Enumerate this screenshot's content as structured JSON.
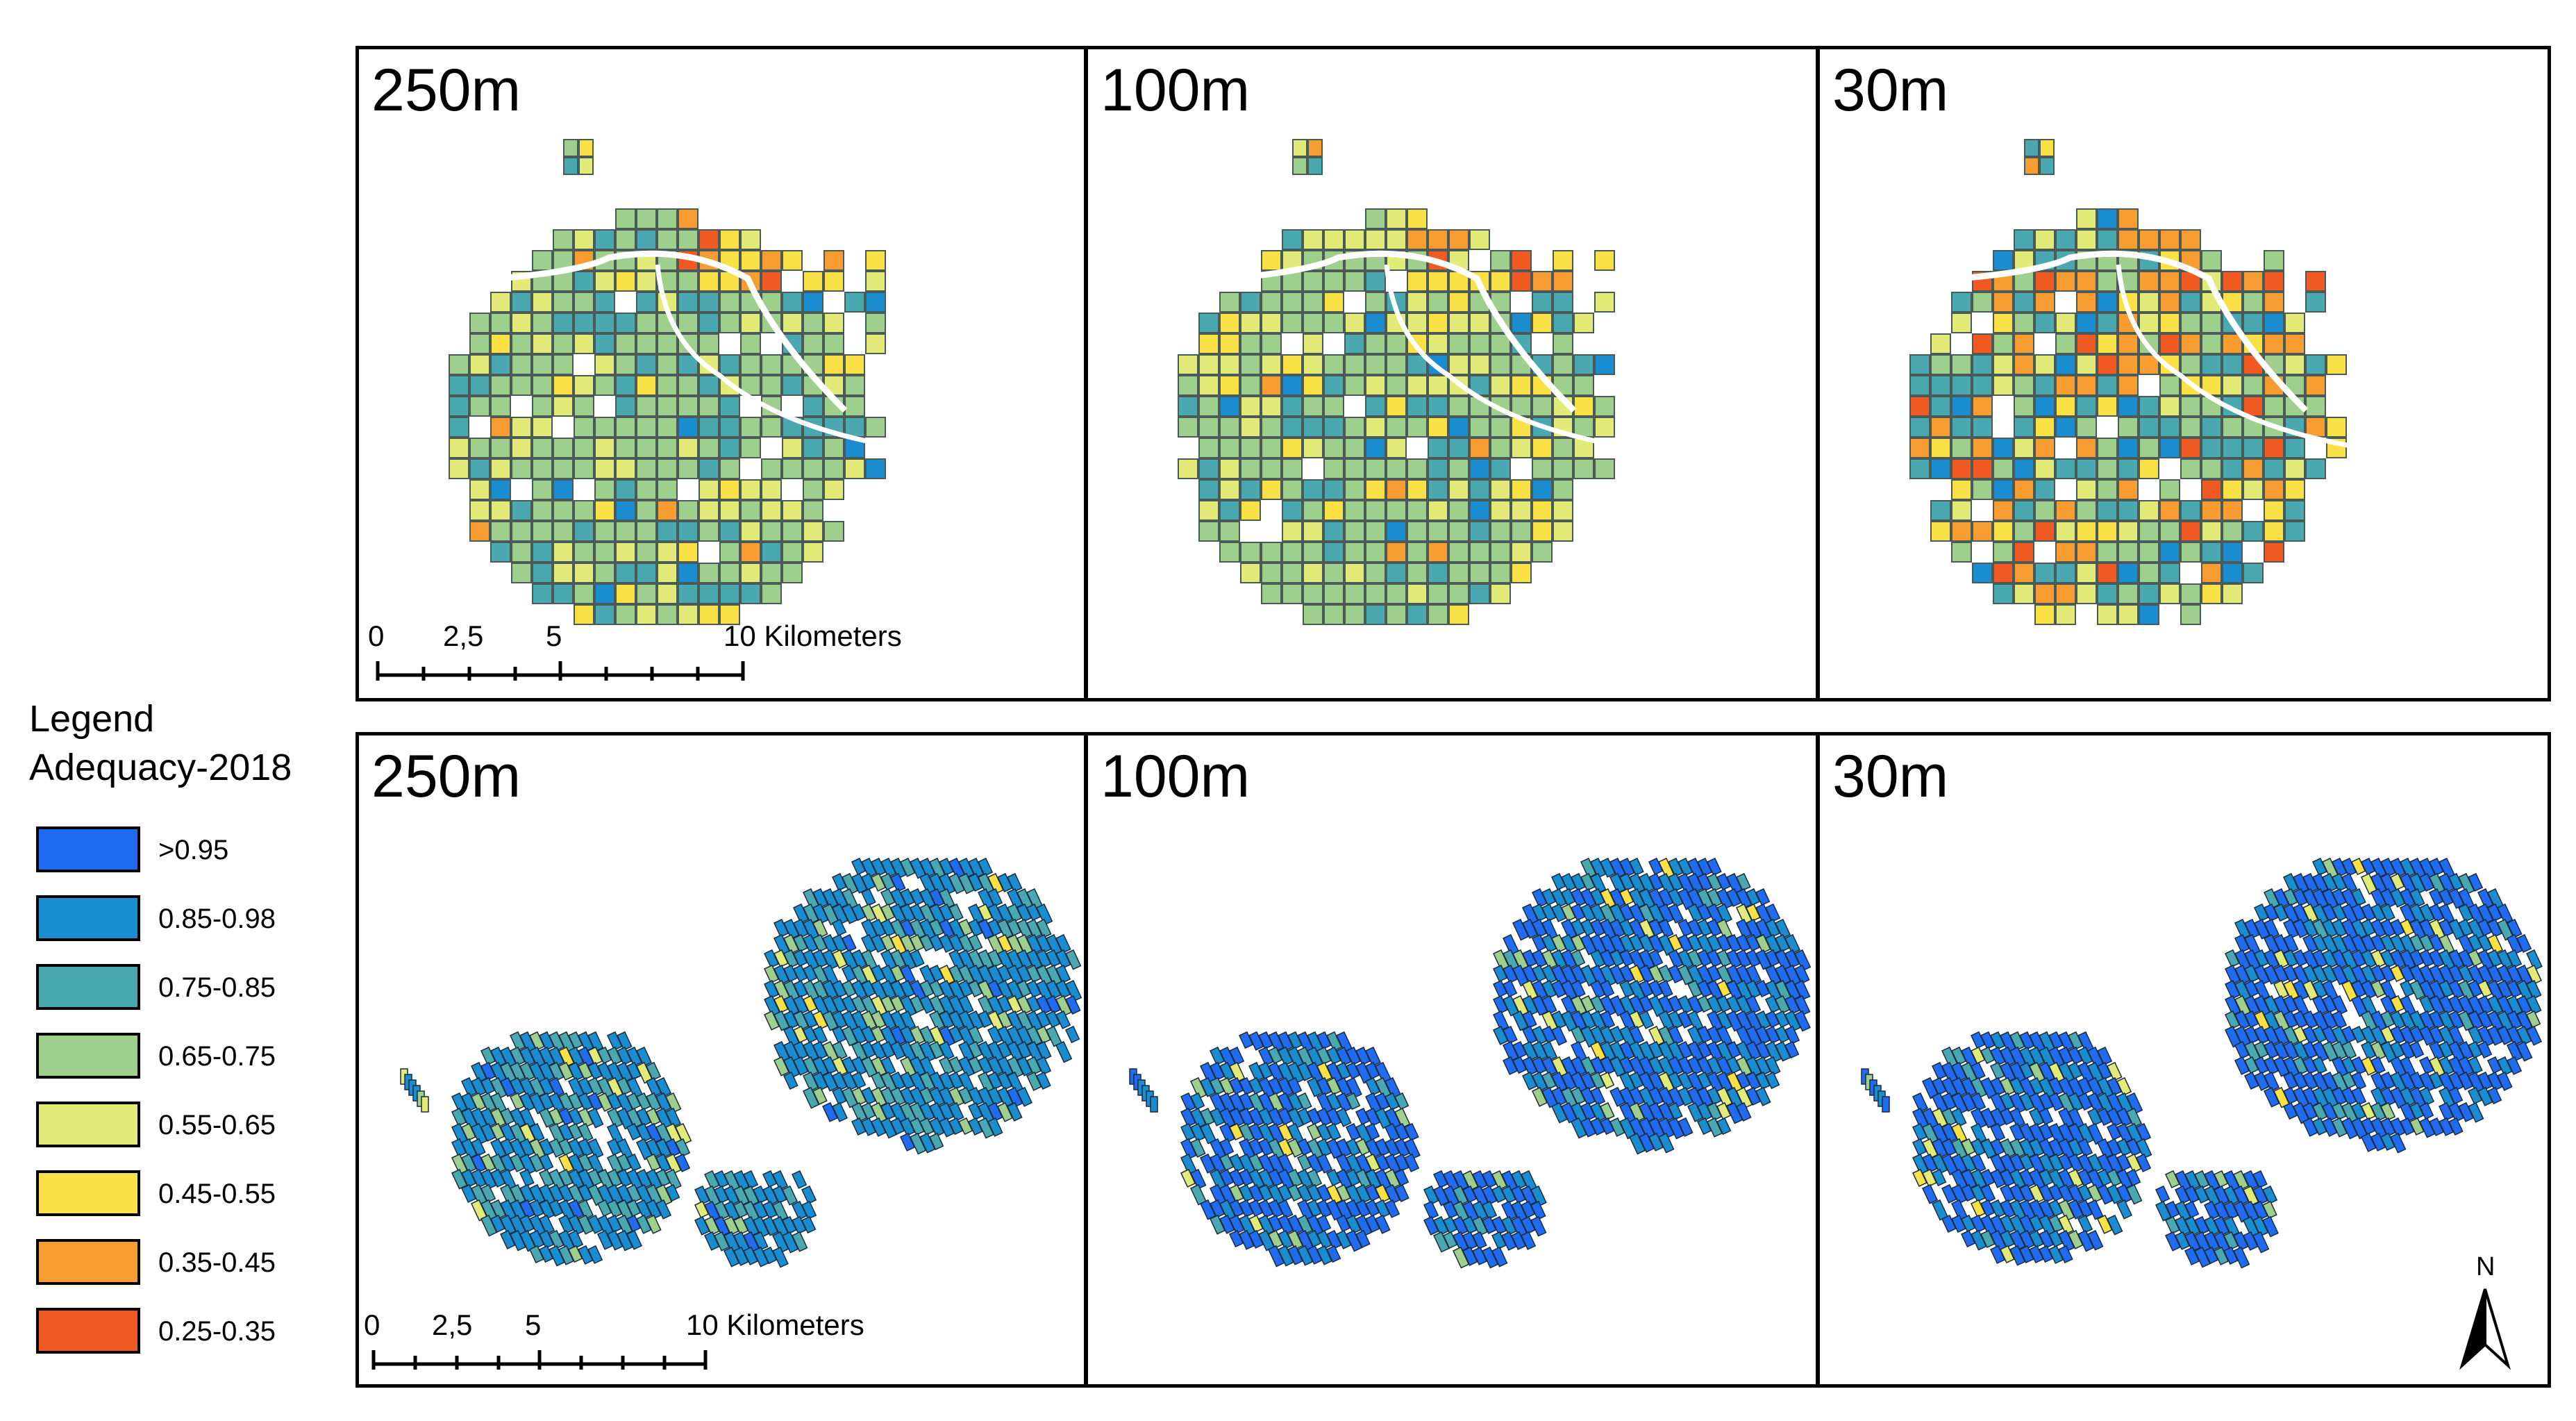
{
  "panels": [
    {
      "label": "250m",
      "row": "top",
      "col": 0
    },
    {
      "label": "100m",
      "row": "top",
      "col": 1
    },
    {
      "label": "30m",
      "row": "top",
      "col": 2
    },
    {
      "label": "250m",
      "row": "bottom",
      "col": 0
    },
    {
      "label": "100m",
      "row": "bottom",
      "col": 1
    },
    {
      "label": "30m",
      "row": "bottom",
      "col": 2
    }
  ],
  "legend": {
    "title": "Legend",
    "subtitle": "Adequacy-2018",
    "classes": [
      {
        "label": ">0.95",
        "color": "#1f6cf0"
      },
      {
        "label": "0.85-0.98",
        "color": "#1a8cd0"
      },
      {
        "label": "0.75-0.85",
        "color": "#4aa8b0"
      },
      {
        "label": "0.65-0.75",
        "color": "#9fcf8c"
      },
      {
        "label": "0.55-0.65",
        "color": "#e2ea78"
      },
      {
        "label": "0.45-0.55",
        "color": "#f9e044"
      },
      {
        "label": "0.35-0.45",
        "color": "#f79c30"
      },
      {
        "label": "0.25-0.35",
        "color": "#f05a22"
      }
    ]
  },
  "scalebars": [
    {
      "labels": [
        "0",
        "2,5",
        "5",
        "10 Kilometers"
      ]
    },
    {
      "labels": [
        "0",
        "2,5",
        "5",
        "10 Kilometers"
      ]
    }
  ],
  "north_arrow": {
    "label": "N",
    "icon": "north-arrow-icon"
  }
}
